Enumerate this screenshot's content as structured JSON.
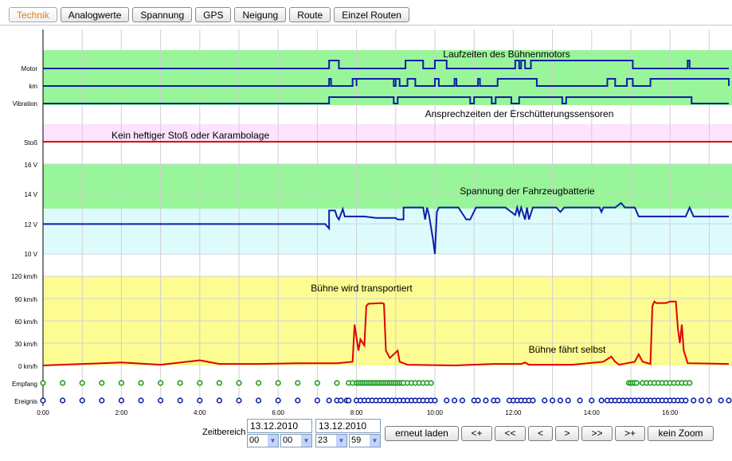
{
  "tabs": [
    {
      "label": "Technik",
      "active": true
    },
    {
      "label": "Analogwerte"
    },
    {
      "label": "Spannung"
    },
    {
      "label": "GPS"
    },
    {
      "label": "Neigung"
    },
    {
      "label": "Route"
    },
    {
      "label": "Einzel Routen"
    }
  ],
  "colors": {
    "accent_tab": "#f07a00",
    "green_band": "#99f599",
    "pink_band": "#fde3fd",
    "cyan_band": "#ddfbfd",
    "yellow_band": "#fcfc93",
    "series_blue": "#0d1fa8",
    "series_red": "#e00000",
    "empfang_green": "#1c9a1c"
  },
  "chart": {
    "row_labels": {
      "motor": "Motor",
      "km": "km",
      "vibration": "Vibration",
      "stoss": "Stoß",
      "v16": "16 V",
      "v14": "14 V",
      "v12": "12 V",
      "v10": "10 V",
      "s120": "120 km/h",
      "s90": "90 km/h",
      "s60": "60 km/h",
      "s30": "30 km/h",
      "s0": "0 km/h",
      "empfang": "Empfang",
      "ereignis": "Ereignis"
    },
    "x_ticks": [
      "0:00",
      "2:00",
      "4:00",
      "6:00",
      "8:00",
      "10:00",
      "12:00",
      "14:00",
      "16:00"
    ],
    "annotations": {
      "motor_title": "Laufzeiten des Bühnenmotors",
      "vibration_title": "Ansprechzeiten der Erschütterungssensoren",
      "stoss_title": "Kein heftiger Stoß oder Karambolage",
      "battery_title": "Spannung der Fahrzeugbatterie",
      "speed_title_1": "Bühne wird transportiert",
      "speed_title_2": "Bühne fährt selbst"
    }
  },
  "chart_data": {
    "type": "line",
    "x_unit": "hour of day (13.12.2010)",
    "xlim": [
      0,
      17.5
    ],
    "series": [
      {
        "name": "Motor",
        "step": true,
        "on_intervals": [
          [
            7.3,
            7.55
          ],
          [
            9.25,
            9.7
          ],
          [
            10.0,
            10.3
          ],
          [
            12.05,
            12.15
          ],
          [
            12.2,
            12.3
          ],
          [
            12.45,
            15.05
          ],
          [
            16.45,
            16.5
          ]
        ]
      },
      {
        "name": "km",
        "step": true,
        "on_intervals": [
          [
            7.3,
            7.35
          ],
          [
            7.9,
            8.0
          ],
          [
            8.0,
            9.0
          ],
          [
            8.95,
            9.1
          ],
          [
            9.3,
            9.5
          ],
          [
            10.0,
            10.1
          ],
          [
            10.5,
            10.55
          ],
          [
            11.1,
            11.15
          ],
          [
            11.6,
            12.6
          ],
          [
            14.4,
            14.6
          ],
          [
            14.9,
            15.05
          ],
          [
            15.5,
            17.5
          ]
        ]
      },
      {
        "name": "Vibration",
        "step": true,
        "on_intervals": [
          [
            7.3,
            8.95
          ],
          [
            9.05,
            10.9
          ],
          [
            11.0,
            11.45
          ],
          [
            11.55,
            11.95
          ],
          [
            12.15,
            13.25
          ],
          [
            13.35,
            16.55
          ]
        ]
      },
      {
        "name": "Stoß",
        "values_constant": 0
      },
      {
        "name": "Spannung",
        "unit": "V",
        "ylim": [
          10,
          16
        ],
        "points": [
          [
            0,
            12.0
          ],
          [
            7.2,
            12.0
          ],
          [
            7.3,
            11.7
          ],
          [
            7.3,
            12.9
          ],
          [
            7.45,
            12.9
          ],
          [
            7.5,
            12.5
          ],
          [
            7.55,
            12.3
          ],
          [
            7.65,
            13.0
          ],
          [
            7.7,
            12.5
          ],
          [
            8.2,
            12.5
          ],
          [
            8.5,
            12.4
          ],
          [
            9.0,
            12.4
          ],
          [
            9.05,
            12.3
          ],
          [
            9.2,
            12.3
          ],
          [
            9.2,
            13.1
          ],
          [
            9.7,
            13.1
          ],
          [
            9.75,
            12.3
          ],
          [
            9.8,
            13.1
          ],
          [
            9.85,
            12.6
          ],
          [
            9.95,
            11.0
          ],
          [
            10.0,
            10.0
          ],
          [
            10.05,
            12.8
          ],
          [
            10.1,
            13.1
          ],
          [
            10.6,
            13.1
          ],
          [
            10.8,
            12.3
          ],
          [
            10.9,
            12.3
          ],
          [
            11.05,
            13.1
          ],
          [
            11.8,
            13.1
          ],
          [
            12.05,
            12.6
          ],
          [
            12.1,
            13.1
          ],
          [
            12.15,
            12.6
          ],
          [
            12.2,
            13.1
          ],
          [
            12.3,
            12.3
          ],
          [
            12.35,
            13.1
          ],
          [
            12.4,
            12.3
          ],
          [
            12.5,
            13.1
          ],
          [
            13.1,
            13.1
          ],
          [
            13.2,
            12.8
          ],
          [
            13.3,
            13.1
          ],
          [
            14.2,
            13.1
          ],
          [
            14.25,
            12.8
          ],
          [
            14.3,
            13.1
          ],
          [
            14.6,
            13.1
          ],
          [
            14.75,
            13.4
          ],
          [
            14.85,
            13.1
          ],
          [
            15.1,
            13.1
          ],
          [
            15.2,
            12.5
          ],
          [
            16.4,
            12.5
          ],
          [
            16.5,
            13.1
          ],
          [
            16.6,
            12.5
          ],
          [
            17.5,
            12.5
          ]
        ]
      },
      {
        "name": "Geschwindigkeit",
        "unit": "km/h",
        "ylim": [
          0,
          120
        ],
        "points": [
          [
            0,
            0
          ],
          [
            1.0,
            2
          ],
          [
            2.0,
            4
          ],
          [
            3.0,
            1
          ],
          [
            4.0,
            7
          ],
          [
            4.5,
            2
          ],
          [
            5.5,
            2
          ],
          [
            6.5,
            3
          ],
          [
            7.5,
            3
          ],
          [
            7.9,
            5
          ],
          [
            7.95,
            55
          ],
          [
            8.05,
            20
          ],
          [
            8.1,
            35
          ],
          [
            8.2,
            27
          ],
          [
            8.25,
            80
          ],
          [
            8.3,
            83
          ],
          [
            8.65,
            84
          ],
          [
            8.7,
            83
          ],
          [
            8.75,
            20
          ],
          [
            8.85,
            10
          ],
          [
            9.05,
            20
          ],
          [
            9.1,
            5
          ],
          [
            9.3,
            1
          ],
          [
            10.5,
            0
          ],
          [
            11.5,
            2
          ],
          [
            12.2,
            2
          ],
          [
            12.3,
            4
          ],
          [
            12.4,
            1
          ],
          [
            13.5,
            1
          ],
          [
            14.3,
            5
          ],
          [
            14.5,
            12
          ],
          [
            14.6,
            5
          ],
          [
            14.7,
            1
          ],
          [
            15.1,
            5
          ],
          [
            15.2,
            15
          ],
          [
            15.3,
            5
          ],
          [
            15.5,
            2
          ],
          [
            15.55,
            80
          ],
          [
            15.6,
            86
          ],
          [
            15.65,
            84
          ],
          [
            15.9,
            84
          ],
          [
            16.0,
            86
          ],
          [
            16.15,
            86
          ],
          [
            16.2,
            50
          ],
          [
            16.25,
            30
          ],
          [
            16.3,
            55
          ],
          [
            16.35,
            20
          ],
          [
            16.45,
            3
          ],
          [
            17.5,
            2
          ]
        ]
      },
      {
        "name": "Empfang",
        "type": "events",
        "times": [
          0.0,
          0.5,
          1.0,
          1.5,
          2.0,
          2.5,
          3.0,
          3.5,
          4.0,
          4.5,
          5.0,
          5.5,
          6.0,
          6.5,
          7.0,
          7.5,
          7.8,
          7.9,
          8.0,
          8.05,
          8.1,
          8.15,
          8.2,
          8.25,
          8.3,
          8.35,
          8.4,
          8.45,
          8.5,
          8.55,
          8.6,
          8.65,
          8.7,
          8.75,
          8.8,
          8.85,
          8.9,
          8.95,
          9.0,
          9.05,
          9.1,
          9.15,
          9.2,
          9.3,
          9.4,
          9.5,
          9.6,
          9.7,
          9.8,
          9.9,
          14.95,
          15.0,
          15.05,
          15.1,
          15.15,
          15.3,
          15.4,
          15.5,
          15.6,
          15.7,
          15.8,
          15.9,
          16.0,
          16.1,
          16.2,
          16.3,
          16.4,
          16.5
        ]
      },
      {
        "name": "Ereignis",
        "type": "events",
        "times": [
          0.0,
          0.5,
          1.0,
          1.5,
          2.0,
          2.5,
          3.0,
          3.5,
          4.0,
          4.5,
          5.0,
          5.5,
          6.0,
          6.5,
          7.0,
          7.3,
          7.5,
          7.6,
          7.75,
          7.8,
          8.0,
          8.1,
          8.2,
          8.3,
          8.4,
          8.5,
          8.6,
          8.7,
          8.8,
          8.9,
          9.0,
          9.1,
          9.2,
          9.3,
          9.4,
          9.5,
          9.6,
          9.7,
          9.8,
          9.9,
          10.0,
          10.3,
          10.5,
          10.7,
          11.0,
          11.1,
          11.3,
          11.5,
          11.6,
          11.9,
          12.0,
          12.1,
          12.2,
          12.3,
          12.4,
          12.5,
          12.8,
          13.0,
          13.2,
          13.4,
          13.7,
          14.0,
          14.25,
          14.4,
          14.5,
          14.6,
          14.7,
          14.8,
          14.9,
          15.0,
          15.1,
          15.2,
          15.3,
          15.4,
          15.5,
          15.6,
          15.7,
          15.8,
          15.9,
          16.0,
          16.1,
          16.2,
          16.3,
          16.4,
          16.6,
          16.8,
          17.0,
          17.3,
          17.5
        ]
      }
    ]
  },
  "controls": {
    "zeitbereich_label": "Zeitbereich",
    "from_date": "13.12.2010",
    "from_hour": "00",
    "from_minute": "00",
    "to_date": "13.12.2010",
    "to_hour": "23",
    "to_minute": "59"
  },
  "buttons": {
    "reload": "erneut laden",
    "plus_left": "<+",
    "fast_back": "<<",
    "back": "<",
    "forward": ">",
    "fast_forward": ">>",
    "plus_right": ">+",
    "no_zoom": "kein Zoom"
  }
}
